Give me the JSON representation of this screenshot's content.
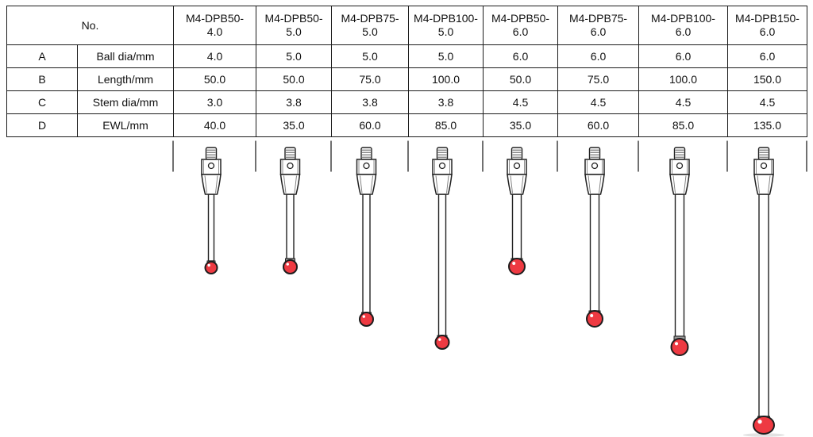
{
  "table": {
    "corner_label": "No.",
    "rows": [
      {
        "letter": "A",
        "label": "Ball dia/mm",
        "key": "ball_dia"
      },
      {
        "letter": "B",
        "label": "Length/mm",
        "key": "length"
      },
      {
        "letter": "C",
        "label": "Stem dia/mm",
        "key": "stem_dia"
      },
      {
        "letter": "D",
        "label": "EWL/mm",
        "key": "ewl"
      }
    ],
    "models": [
      {
        "no": "M4-DPB50-4.0",
        "ball_dia": "4.0",
        "length": "50.0",
        "stem_dia": "3.0",
        "ewl": "40.0"
      },
      {
        "no": "M4-DPB50-5.0",
        "ball_dia": "5.0",
        "length": "50.0",
        "stem_dia": "3.8",
        "ewl": "35.0"
      },
      {
        "no": "M4-DPB75-5.0",
        "ball_dia": "5.0",
        "length": "75.0",
        "stem_dia": "3.8",
        "ewl": "60.0"
      },
      {
        "no": "M4-DPB100-5.0",
        "ball_dia": "5.0",
        "length": "100.0",
        "stem_dia": "3.8",
        "ewl": "85.0"
      },
      {
        "no": "M4-DPB50-6.0",
        "ball_dia": "6.0",
        "length": "50.0",
        "stem_dia": "4.5",
        "ewl": "35.0"
      },
      {
        "no": "M4-DPB75-6.0",
        "ball_dia": "6.0",
        "length": "75.0",
        "stem_dia": "4.5",
        "ewl": "60.0"
      },
      {
        "no": "M4-DPB100-6.0",
        "ball_dia": "6.0",
        "length": "100.0",
        "stem_dia": "4.5",
        "ewl": "85.0"
      },
      {
        "no": "M4-DPB150-6.0",
        "ball_dia": "6.0",
        "length": "150.0",
        "stem_dia": "4.5",
        "ewl": "135.0"
      }
    ]
  },
  "diagram": {
    "description": "M4 thread stylus figures with holder, stem and ruby ball, one per model column",
    "colors": {
      "ball_fill": "#ee3a42",
      "ball_outline": "#1d1d1d",
      "ball_highlight": "#ffffff",
      "metal_fill": "#ffffff",
      "metal_outline": "#222222",
      "shade_line": "#8f8f8f",
      "collar_fill": "#9a9a9a",
      "divider_line": "#333333",
      "shadow": "#e2e2e2"
    }
  }
}
